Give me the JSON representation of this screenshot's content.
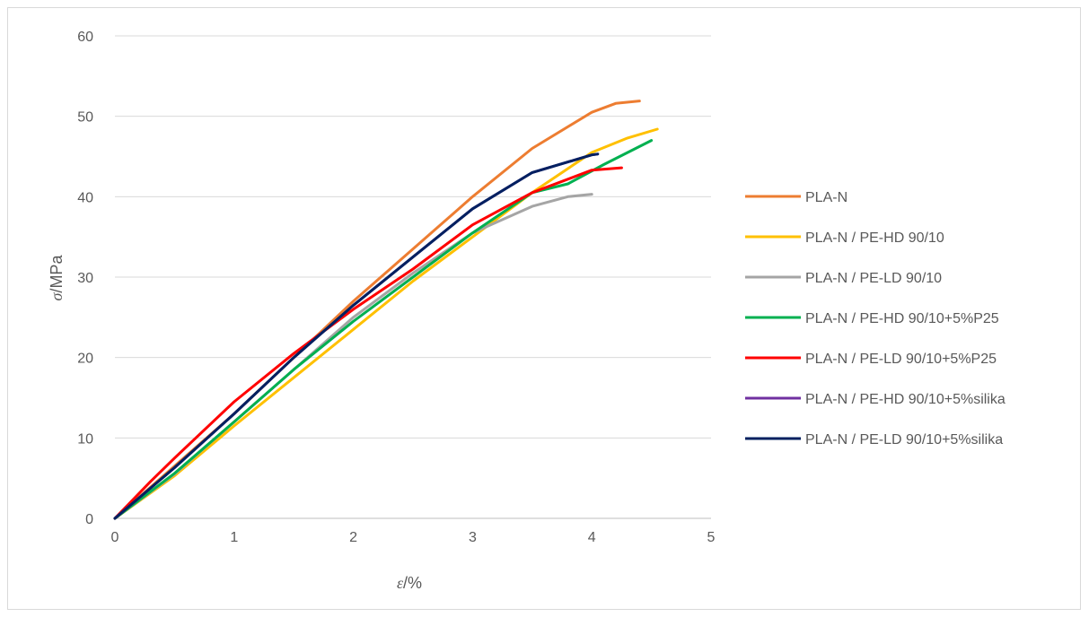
{
  "chart_data": {
    "type": "line",
    "xlabel_symbol": "ε",
    "xlabel_unit": "/%",
    "ylabel_symbol": "σ",
    "ylabel_unit": "/MPa",
    "xlim": [
      0,
      5
    ],
    "ylim": [
      0,
      60
    ],
    "x_ticks": [
      "0",
      "1",
      "2",
      "3",
      "4",
      "5"
    ],
    "y_ticks": [
      "0",
      "10",
      "20",
      "30",
      "40",
      "50",
      "60"
    ],
    "grid": true,
    "legend_position": "right",
    "series": [
      {
        "name": "PLA-N",
        "color": "#ed7d31",
        "x": [
          0,
          0.5,
          1,
          1.5,
          2,
          2.5,
          3,
          3.5,
          4,
          4.2,
          4.4
        ],
        "y": [
          0,
          6.5,
          13,
          20,
          27,
          33.5,
          40,
          46,
          50.5,
          51.6,
          51.9
        ]
      },
      {
        "name": "PLA-N / PE-HD 90/10",
        "color": "#ffc000",
        "x": [
          0,
          0.5,
          1,
          1.5,
          2,
          2.5,
          3,
          3.5,
          4,
          4.3,
          4.55
        ],
        "y": [
          0,
          5.3,
          11.5,
          17.5,
          23.5,
          29.5,
          35,
          40.5,
          45.5,
          47.3,
          48.4
        ]
      },
      {
        "name": "PLA-N / PE-LD 90/10",
        "color": "#a5a5a5",
        "x": [
          0,
          0.5,
          1,
          1.5,
          2,
          2.5,
          3,
          3.5,
          3.8,
          4.0
        ],
        "y": [
          0,
          5.5,
          12,
          18.5,
          25,
          30.5,
          35.5,
          38.8,
          40.0,
          40.3
        ]
      },
      {
        "name": "PLA-N / PE-HD 90/10+5%P25",
        "color": "#00b050",
        "x": [
          0,
          0.5,
          1,
          1.5,
          2,
          2.5,
          3,
          3.5,
          3.8,
          4.1,
          4.5
        ],
        "y": [
          0,
          5.6,
          12,
          18.5,
          24.5,
          30,
          35.5,
          40.5,
          41.6,
          44,
          47
        ]
      },
      {
        "name": "PLA-N / PE-LD 90/10+5%P25",
        "color": "#ff0000",
        "x": [
          0,
          0.3,
          0.5,
          1,
          1.5,
          2,
          2.5,
          3,
          3.5,
          4,
          4.25
        ],
        "y": [
          0,
          4.6,
          7.5,
          14.5,
          20.5,
          26,
          31,
          36.5,
          40.5,
          43.3,
          43.6
        ]
      },
      {
        "name": "PLA-N / PE-HD 90/10+5%silika",
        "color": "#7030a0",
        "x": [
          0,
          0.5,
          1,
          1.5,
          2,
          2.5,
          3,
          3.5,
          4,
          4.05
        ],
        "y": [
          0,
          6.3,
          13,
          20,
          26.5,
          32.5,
          38.5,
          43,
          45.2,
          45.3
        ]
      },
      {
        "name": "PLA-N / PE-LD 90/10+5%silika",
        "color": "#002060",
        "x": [
          0,
          0.5,
          1,
          1.5,
          2,
          2.5,
          3,
          3.5,
          4,
          4.05
        ],
        "y": [
          0,
          6.3,
          13,
          20,
          26.5,
          32.5,
          38.5,
          43,
          45.2,
          45.3
        ]
      }
    ]
  }
}
